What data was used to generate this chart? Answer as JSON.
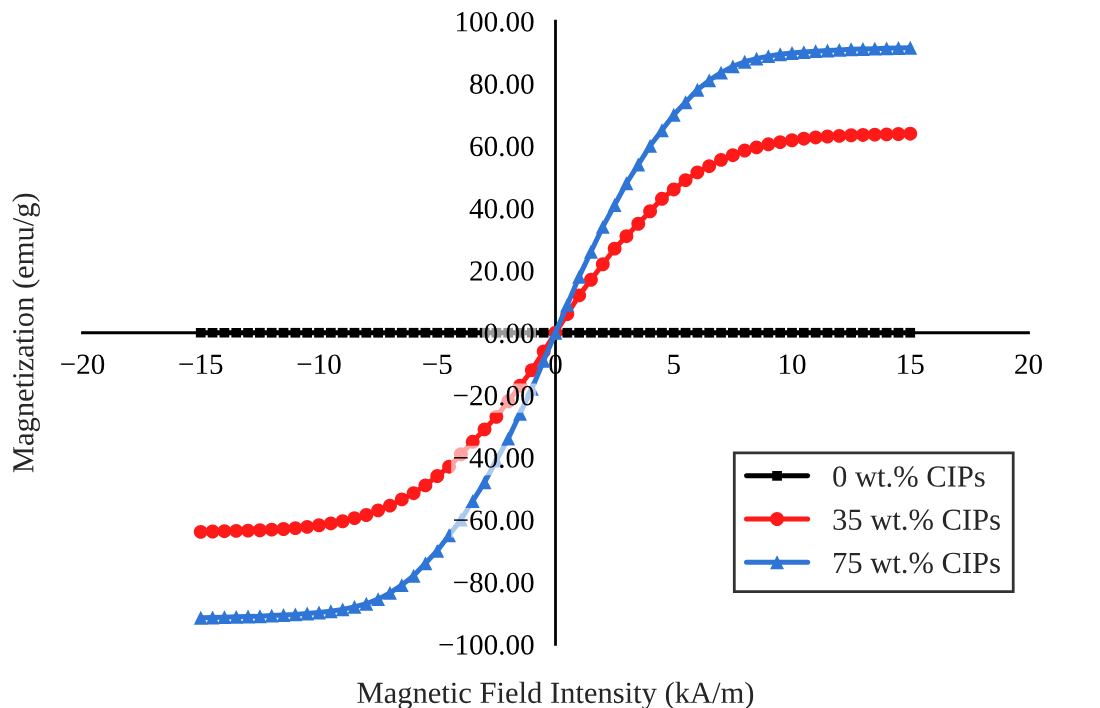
{
  "chart_data": {
    "type": "line",
    "xlabel": "Magnetic Field Intensity (kA/m)",
    "ylabel": "Magnetization (emu/g)",
    "x": [
      -15,
      -14.5,
      -14,
      -13.5,
      -13,
      -12.5,
      -12,
      -11.5,
      -11,
      -10.5,
      -10,
      -9.5,
      -9,
      -8.5,
      -8,
      -7.5,
      -7,
      -6.5,
      -6,
      -5.5,
      -5,
      -4.5,
      -4,
      -3.5,
      -3,
      -2.5,
      -2,
      -1.5,
      -1,
      -0.5,
      0,
      0.5,
      1,
      1.5,
      2,
      2.5,
      3,
      3.5,
      4,
      4.5,
      5,
      5.5,
      6,
      6.5,
      7,
      7.5,
      8,
      8.5,
      9,
      9.5,
      10,
      10.5,
      11,
      11.5,
      12,
      12.5,
      13,
      13.5,
      14,
      14.5,
      15
    ],
    "series": [
      {
        "name": "0 wt.% CIPs",
        "color": "#000000",
        "marker": "square",
        "values": [
          0,
          0,
          0,
          0,
          0,
          0,
          0,
          0,
          0,
          0,
          0,
          0,
          0,
          0,
          0,
          0,
          0,
          0,
          0,
          0,
          0,
          0,
          0,
          0,
          0,
          0,
          0,
          0,
          0,
          0,
          0,
          0,
          0,
          0,
          0,
          0,
          0,
          0,
          0,
          0,
          0,
          0,
          0,
          0,
          0,
          0,
          0,
          0,
          0,
          0,
          0,
          0,
          0,
          0,
          0,
          0,
          0,
          0,
          0,
          0,
          0
        ]
      },
      {
        "name": "35 wt.% CIPs",
        "color": "#ff1a1a",
        "marker": "circle",
        "values": [
          -63.9,
          -63.8,
          -63.7,
          -63.6,
          -63.5,
          -63.4,
          -63.2,
          -63,
          -62.7,
          -62.3,
          -61.8,
          -61.2,
          -60.5,
          -59.5,
          -58.5,
          -57,
          -55.5,
          -53.5,
          -51.5,
          -49,
          -46,
          -43,
          -39,
          -35,
          -31,
          -27,
          -22,
          -17,
          -12,
          -6,
          0,
          6,
          12,
          17,
          22,
          27,
          31,
          35,
          39,
          43,
          46,
          49,
          51.5,
          53.5,
          55.5,
          57,
          58.5,
          59.5,
          60.5,
          61.2,
          61.8,
          62.3,
          62.7,
          63,
          63.2,
          63.4,
          63.5,
          63.6,
          63.7,
          63.8,
          63.9
        ]
      },
      {
        "name": "75 wt.% CIPs",
        "color": "#2e75d6",
        "marker": "triangle",
        "values": [
          -91.5,
          -91.4,
          -91.3,
          -91.2,
          -91.1,
          -91,
          -90.8,
          -90.6,
          -90.4,
          -90.1,
          -89.8,
          -89.4,
          -88.8,
          -88,
          -87,
          -85.5,
          -83.5,
          -81,
          -78,
          -74,
          -70,
          -65,
          -60,
          -54,
          -48,
          -41,
          -34,
          -26,
          -18,
          -9,
          0,
          9,
          18,
          26,
          34,
          41,
          48,
          54,
          60,
          65,
          70,
          74,
          78,
          81,
          83.5,
          85.5,
          87,
          88,
          88.8,
          89.4,
          89.8,
          90.1,
          90.4,
          90.6,
          90.8,
          91,
          91.1,
          91.2,
          91.3,
          91.4,
          91.5
        ]
      }
    ],
    "xlim": [
      -20,
      20
    ],
    "ylim": [
      -100,
      100
    ],
    "xticks": [
      {
        "value": -20,
        "label": "−20"
      },
      {
        "value": -15,
        "label": "−15"
      },
      {
        "value": -10,
        "label": "−10"
      },
      {
        "value": -5,
        "label": "−5"
      },
      0,
      5,
      10,
      15,
      20
    ],
    "yticks": [
      {
        "value": -100,
        "label": "−100.00"
      },
      {
        "value": -80,
        "label": "−80.00"
      },
      {
        "value": -60,
        "label": "−60.00"
      },
      {
        "value": -40,
        "label": "−40.00"
      },
      {
        "value": -20,
        "label": "−20.00"
      },
      {
        "value": 0,
        "label": "0.00"
      },
      {
        "value": 20,
        "label": "20.00"
      },
      {
        "value": 40,
        "label": "40.00"
      },
      {
        "value": 60,
        "label": "60.00"
      },
      {
        "value": 80,
        "label": "80.00"
      },
      {
        "value": 100,
        "label": "100.00"
      }
    ],
    "grid": false,
    "legend": "bottom right"
  }
}
